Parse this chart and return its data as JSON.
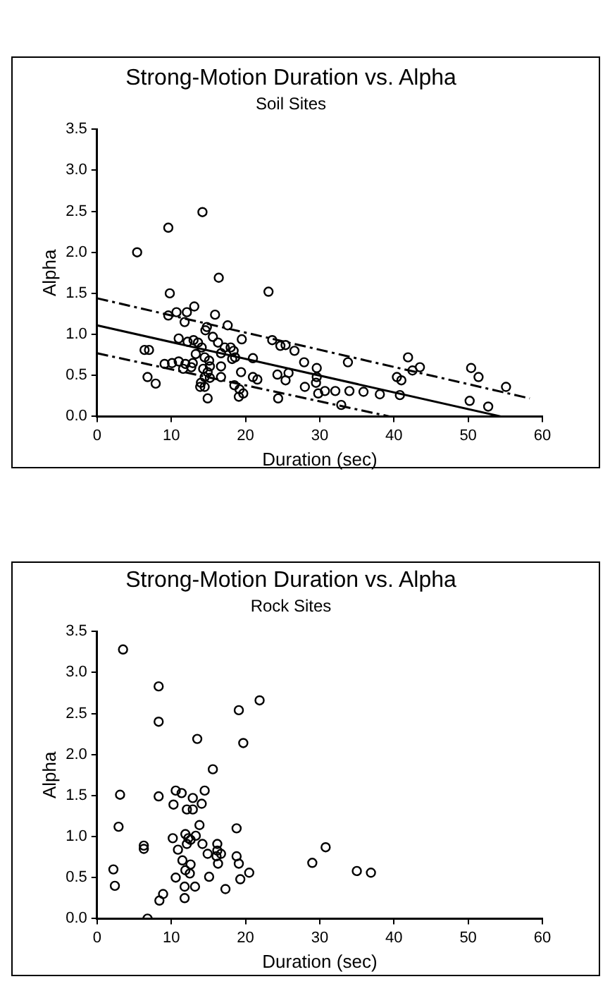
{
  "chart_data": [
    {
      "type": "scatter",
      "title": "Strong-Motion Duration vs. Alpha",
      "subtitle": "Soil Sites",
      "xlabel": "Duration (sec)",
      "ylabel": "Alpha",
      "xlim": [
        0,
        60
      ],
      "ylim": [
        0,
        3.5
      ],
      "xticks": [
        0,
        10,
        20,
        30,
        40,
        50,
        60
      ],
      "yticks": [
        {
          "value": 0,
          "label": "0.0"
        },
        0.5,
        {
          "value": 1,
          "label": "1.0"
        },
        1.5,
        {
          "value": 2,
          "label": "2.0"
        },
        2.5,
        {
          "value": 3,
          "label": "3.0"
        },
        3.5
      ],
      "grid": false,
      "legend": false,
      "marker": "circle",
      "series": [
        {
          "color": "#000000",
          "x": [
            5.4,
            9.6,
            14.2,
            16.4,
            23.1,
            9.8,
            9.6,
            10.7,
            12.1,
            13.1,
            11.8,
            15.9,
            17.6,
            14.8,
            14.6,
            11.0,
            12.2,
            13.0,
            13.6,
            14.1,
            15.6,
            16.3,
            16.7,
            17.2,
            18.0,
            18.4,
            18.6,
            18.2,
            19.5,
            23.6,
            24.7,
            25.4,
            26.6,
            27.9,
            29.6,
            33.8,
            41.9,
            43.5,
            42.5,
            40.4,
            41.0,
            50.4,
            51.4,
            55.1,
            50.2,
            52.7,
            40.8,
            38.1,
            35.9,
            34.0,
            32.1,
            32.9,
            30.7,
            29.8,
            29.5,
            29.6,
            28.0,
            25.8,
            25.4,
            24.3,
            24.4,
            21.6,
            21.0,
            21.0,
            19.4,
            19.7,
            19.1,
            19.2,
            18.5,
            16.7,
            16.7,
            14.9,
            15.2,
            14.9,
            15.2,
            15.1,
            14.5,
            14.3,
            14.5,
            14.0,
            13.9,
            14.5,
            13.3,
            12.9,
            12.7,
            11.6,
            11.9,
            11.0,
            10.1,
            9.1,
            6.4,
            7.0,
            6.8,
            7.9
          ],
          "values": [
            2.0,
            2.3,
            2.49,
            1.69,
            1.52,
            1.5,
            1.23,
            1.27,
            1.27,
            1.34,
            1.15,
            1.24,
            1.11,
            1.09,
            1.05,
            0.95,
            0.91,
            0.93,
            0.9,
            0.84,
            0.97,
            0.9,
            0.77,
            0.84,
            0.84,
            0.8,
            0.72,
            0.7,
            0.94,
            0.93,
            0.86,
            0.87,
            0.8,
            0.66,
            0.59,
            0.66,
            0.72,
            0.6,
            0.56,
            0.48,
            0.44,
            0.59,
            0.48,
            0.36,
            0.19,
            0.12,
            0.26,
            0.27,
            0.3,
            0.31,
            0.31,
            0.14,
            0.31,
            0.28,
            0.41,
            0.48,
            0.36,
            0.53,
            0.44,
            0.51,
            0.22,
            0.45,
            0.48,
            0.71,
            0.54,
            0.28,
            0.24,
            0.33,
            0.38,
            0.48,
            0.61,
            0.22,
            0.47,
            0.54,
            0.61,
            0.68,
            0.72,
            0.58,
            0.48,
            0.41,
            0.36,
            0.36,
            0.76,
            0.65,
            0.6,
            0.58,
            0.64,
            0.67,
            0.65,
            0.64,
            0.81,
            0.81,
            0.48,
            0.4
          ]
        },
        {
          "type": "line",
          "marker": "none",
          "color": "#000000",
          "line_style": "solid",
          "x": [
            0,
            54.4
          ],
          "values": [
            1.11,
            0
          ]
        },
        {
          "type": "line",
          "marker": "none",
          "color": "#000000",
          "line_style": "dashed",
          "x": [
            0,
            58.3
          ],
          "values": [
            1.44,
            0.22
          ]
        },
        {
          "type": "line",
          "marker": "none",
          "color": "#000000",
          "line_style": "dashed",
          "x": [
            0,
            39.4
          ],
          "values": [
            0.77,
            0
          ]
        }
      ]
    },
    {
      "type": "scatter",
      "title": "Strong-Motion Duration vs. Alpha",
      "subtitle": "Rock Sites",
      "xlabel": "Duration (sec)",
      "ylabel": "Alpha",
      "xlim": [
        0,
        60
      ],
      "ylim": [
        0,
        3.5
      ],
      "xticks": [
        0,
        10,
        20,
        30,
        40,
        50,
        60
      ],
      "yticks": [
        {
          "value": 0,
          "label": "0.0"
        },
        0.5,
        {
          "value": 1,
          "label": "1.0"
        },
        1.5,
        {
          "value": 2,
          "label": "2.0"
        },
        2.5,
        {
          "value": 3,
          "label": "3.0"
        },
        3.5
      ],
      "grid": false,
      "legend": false,
      "marker": "circle",
      "series": [
        {
          "color": "#000000",
          "x": [
            3.5,
            8.3,
            8.3,
            21.9,
            19.1,
            19.7,
            13.5,
            15.6,
            3.1,
            2.9,
            8.3,
            10.6,
            11.4,
            10.3,
            12.9,
            14.5,
            14.1,
            12.1,
            12.9,
            13.8,
            18.8,
            10.2,
            11.9,
            12.3,
            13.3,
            12.6,
            12.1,
            14.2,
            10.9,
            6.3,
            6.3,
            16.2,
            16.2,
            16.7,
            14.9,
            16.1,
            30.8,
            18.8,
            19.1,
            11.5,
            12.6,
            16.3,
            29.0,
            35.0,
            36.9,
            11.9,
            12.5,
            2.2,
            10.6,
            15.1,
            20.5,
            19.3,
            2.4,
            11.8,
            13.2,
            17.3,
            8.9,
            8.4,
            11.8,
            6.8
          ],
          "values": [
            3.28,
            2.83,
            2.4,
            2.66,
            2.54,
            2.14,
            2.19,
            1.82,
            1.51,
            1.12,
            1.49,
            1.56,
            1.53,
            1.39,
            1.47,
            1.56,
            1.4,
            1.33,
            1.33,
            1.14,
            1.1,
            0.98,
            1.03,
            0.98,
            1.01,
            0.96,
            0.91,
            0.91,
            0.84,
            0.89,
            0.85,
            0.91,
            0.83,
            0.79,
            0.79,
            0.76,
            0.87,
            0.76,
            0.67,
            0.71,
            0.66,
            0.67,
            0.68,
            0.58,
            0.56,
            0.59,
            0.55,
            0.6,
            0.5,
            0.51,
            0.56,
            0.48,
            0.4,
            0.39,
            0.39,
            0.36,
            0.3,
            0.22,
            0.25,
            0.0
          ]
        }
      ]
    }
  ]
}
